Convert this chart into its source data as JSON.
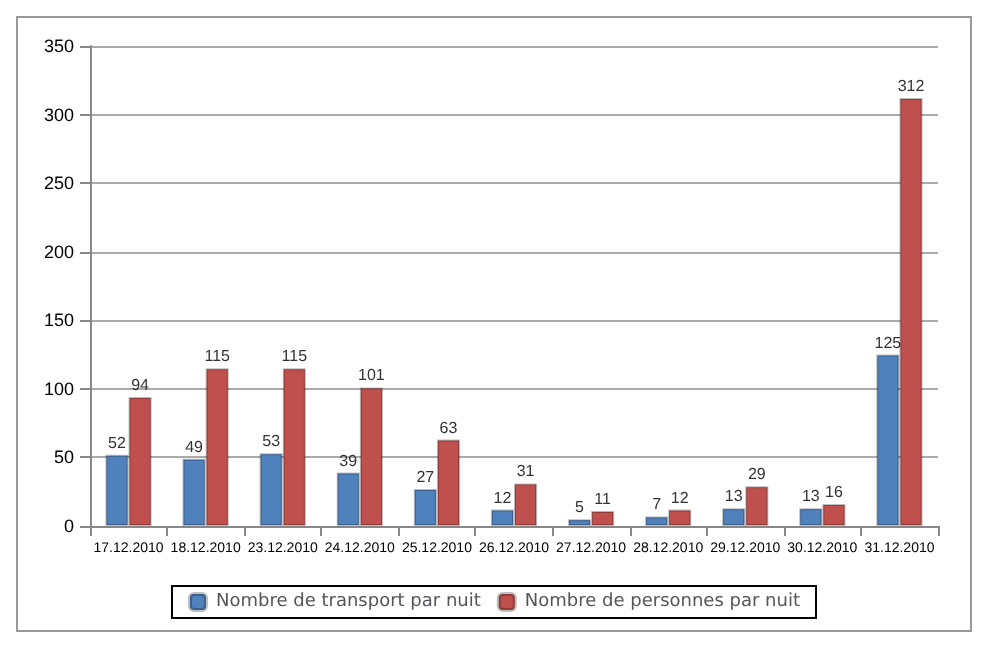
{
  "chart_data": {
    "type": "bar",
    "categories": [
      "17.12.2010",
      "18.12.2010",
      "23.12.2010",
      "24.12.2010",
      "25.12.2010",
      "26.12.2010",
      "27.12.2010",
      "28.12.2010",
      "29.12.2010",
      "30.12.2010",
      "31.12.2010"
    ],
    "series": [
      {
        "name": "Nombre de transport par nuit",
        "color": "#4f81bd",
        "values": [
          52,
          49,
          53,
          39,
          27,
          12,
          5,
          7,
          13,
          13,
          125
        ]
      },
      {
        "name": "Nombre de personnes par nuit",
        "color": "#c0504d",
        "values": [
          94,
          115,
          115,
          101,
          63,
          31,
          11,
          12,
          29,
          16,
          312
        ]
      }
    ],
    "ylim": [
      0,
      350
    ],
    "yticks": [
      0,
      50,
      100,
      150,
      200,
      250,
      300,
      350
    ],
    "grid": "y",
    "legend": "bottom",
    "data_labels": true
  }
}
